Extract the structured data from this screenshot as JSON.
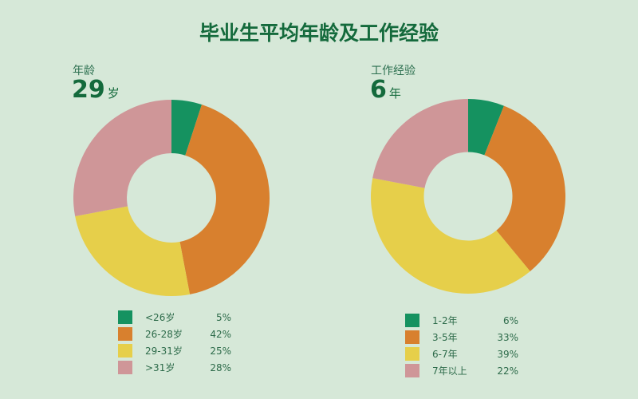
{
  "title": "毕业生平均年龄及工作经验",
  "colors": {
    "green": "#159260",
    "orange": "#d8802e",
    "yellow": "#e6cf4a",
    "pink": "#cf9698",
    "background": "#d6e8d8"
  },
  "panels": [
    {
      "kpi_label": "年龄",
      "kpi_value": "29",
      "kpi_unit": "岁"
    },
    {
      "kpi_label": "工作经验",
      "kpi_value": "6",
      "kpi_unit": "年"
    }
  ],
  "chart_data": [
    {
      "type": "pie",
      "labels": [
        "<26岁",
        "26-28岁",
        "29-31岁",
        ">31岁"
      ],
      "values": [
        5,
        42,
        25,
        28
      ],
      "value_labels": [
        "5%",
        "42%",
        "25%",
        "28%"
      ],
      "colors": [
        "#159260",
        "#d8802e",
        "#e6cf4a",
        "#cf9698"
      ],
      "donut": true,
      "legend_position": "bottom"
    },
    {
      "type": "pie",
      "labels": [
        "1-2年",
        "3-5年",
        "6-7年",
        "7年以上"
      ],
      "values": [
        6,
        33,
        39,
        22
      ],
      "value_labels": [
        "6%",
        "33%",
        "39%",
        "22%"
      ],
      "colors": [
        "#159260",
        "#d8802e",
        "#e6cf4a",
        "#cf9698"
      ],
      "donut": true,
      "legend_position": "bottom"
    }
  ]
}
